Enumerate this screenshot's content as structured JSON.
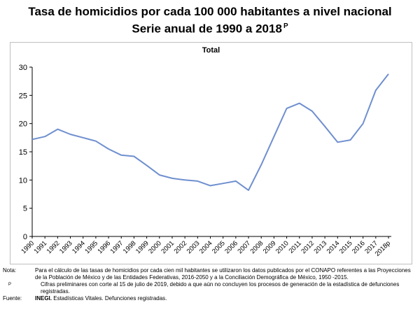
{
  "title_line1": "Tasa de homicidios por cada 100 000 habitantes a nivel nacional",
  "title_line2": "Serie anual de 1990 a 2018",
  "title_sup": "P",
  "chart_data": {
    "type": "line",
    "title": "Total",
    "categories": [
      "1990",
      "1991",
      "1992",
      "1993",
      "1994",
      "1995",
      "1996",
      "1997",
      "1998",
      "1999",
      "2000",
      "2001",
      "2002",
      "2003",
      "2004",
      "2005",
      "2006",
      "2007",
      "2008",
      "2009",
      "2010",
      "2011",
      "2012",
      "2013",
      "2014",
      "2015",
      "2016",
      "2017",
      "2018p"
    ],
    "series": [
      {
        "values": [
          17.2,
          17.7,
          19.0,
          18.1,
          17.5,
          16.9,
          15.5,
          14.4,
          14.2,
          12.6,
          10.9,
          10.3,
          10.0,
          9.8,
          9.0,
          9.4,
          9.8,
          8.2,
          12.7,
          17.7,
          22.7,
          23.6,
          22.2,
          19.5,
          16.7,
          17.1,
          20.0,
          25.9,
          28.8
        ],
        "color": "#6f8fcf"
      }
    ],
    "ylim": [
      0,
      30
    ],
    "yticks": [
      0,
      5,
      10,
      15,
      20,
      25,
      30
    ],
    "grid": false
  },
  "notes": {
    "nota_label": "Nota:",
    "nota_text": "Para el cálculo de las tasas de homicidios por cada cien mil habitantes se utilizaron los datos publicados por el CONAPO referentes a las Proyecciones de la Población de México y de las Entidades Federativas, 2016-2050 y a la Conciliación Demográfica de México, 1950 -2015.",
    "p_label": "P",
    "p_text": "Cifras preliminares con corte al 15 de julio de 2019, debido a que aún no concluyen los procesos de generación de la estadística de defunciones registradas.",
    "fuente_label": "Fuente:",
    "fuente_bold": "INEGI.",
    "fuente_text": " Estadísticas Vitales. Defunciones registradas."
  }
}
